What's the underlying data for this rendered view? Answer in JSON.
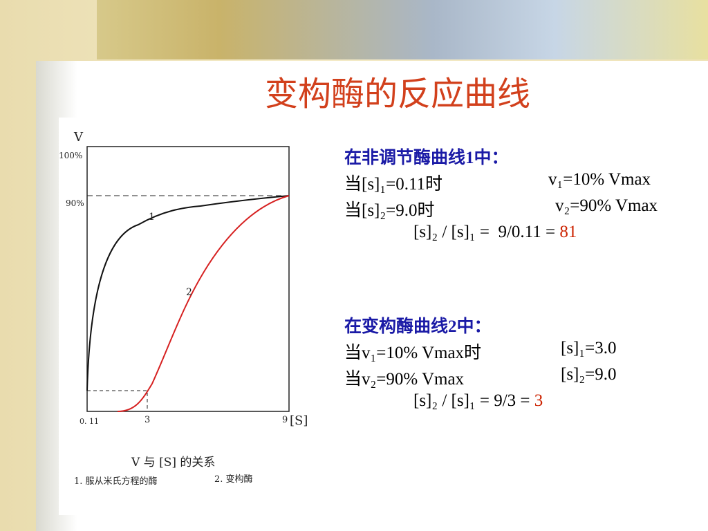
{
  "title": "变构酶的反应曲线",
  "figure": {
    "y_axis_label": "V",
    "y_top": "100%",
    "y_mark": "90%",
    "x_labels": [
      "0. 11",
      "3",
      "9"
    ],
    "x_axis_label": "[S]",
    "curve_labels": [
      "1",
      "2"
    ],
    "caption": "V 与 [S] 的关系",
    "legend": [
      "1. 服从米氏方程的酶",
      "2. 变构酶"
    ]
  },
  "notes": [
    {
      "heading": "在非调节酶曲线1中：",
      "lines": [
        [
          "当[s]₁=0.11时",
          "v₁=10% Vmax"
        ],
        [
          "当[s]₂=9.0时",
          "v₂=90% Vmax"
        ]
      ],
      "ratio": [
        "[s]₂ / [s]₁ =  9/0.11 = ",
        "81"
      ]
    },
    {
      "heading": "在变构酶曲线2中：",
      "lines": [
        [
          "当v₁=10% Vmax时",
          "[s]₁=3.0"
        ],
        [
          "当v₂=90% Vmax",
          "[s]₂=9.0"
        ]
      ],
      "ratio": [
        "[s]₂ / [s]₁ = 9/3 = ",
        "3"
      ]
    }
  ]
}
